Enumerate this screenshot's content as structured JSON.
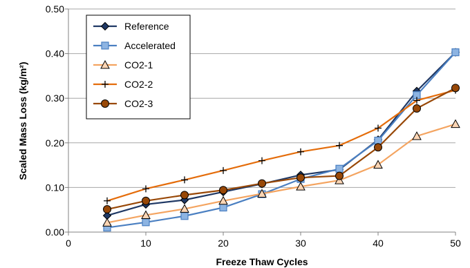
{
  "chart_data": {
    "type": "line",
    "xlabel": "Freeze Thaw Cycles",
    "ylabel": "Scaled Mass Loss (kg/m²)",
    "xlim": [
      0,
      50
    ],
    "ylim": [
      0,
      0.5
    ],
    "x_ticks": [
      "0",
      "10",
      "20",
      "30",
      "40",
      "50"
    ],
    "y_ticks": [
      "0.00",
      "0.10",
      "0.20",
      "0.30",
      "0.40",
      "0.50"
    ],
    "grid": "horizontal",
    "legend_position": "top-left",
    "x": [
      5,
      10,
      15,
      20,
      25,
      30,
      35,
      40,
      45,
      50
    ],
    "series": [
      {
        "name": "Reference",
        "marker": "diamond",
        "color": "#1f3864",
        "marker_fill": "#1f3864",
        "values": [
          0.037,
          0.062,
          0.072,
          0.09,
          0.108,
          0.128,
          0.14,
          0.207,
          0.316,
          0.403
        ]
      },
      {
        "name": "Accelerated",
        "marker": "square",
        "color": "#4a7fc1",
        "marker_fill": "#8db4e2",
        "values": [
          0.01,
          0.022,
          0.036,
          0.055,
          0.085,
          0.119,
          0.142,
          0.205,
          0.307,
          0.403
        ]
      },
      {
        "name": "CO2-1",
        "marker": "triangle",
        "color": "#f4a460",
        "marker_fill": "#fcd5b4",
        "values": [
          0.021,
          0.038,
          0.052,
          0.07,
          0.086,
          0.102,
          0.116,
          0.151,
          0.215,
          0.242
        ]
      },
      {
        "name": "CO2-2",
        "marker": "plus",
        "color": "#e46c0a",
        "marker_fill": "#000000",
        "values": [
          0.07,
          0.097,
          0.117,
          0.138,
          0.16,
          0.18,
          0.194,
          0.233,
          0.295,
          0.318
        ]
      },
      {
        "name": "CO2-3",
        "marker": "circle",
        "color": "#984807",
        "marker_fill": "#984807",
        "values": [
          0.051,
          0.07,
          0.083,
          0.094,
          0.109,
          0.122,
          0.126,
          0.19,
          0.277,
          0.323
        ]
      }
    ]
  }
}
